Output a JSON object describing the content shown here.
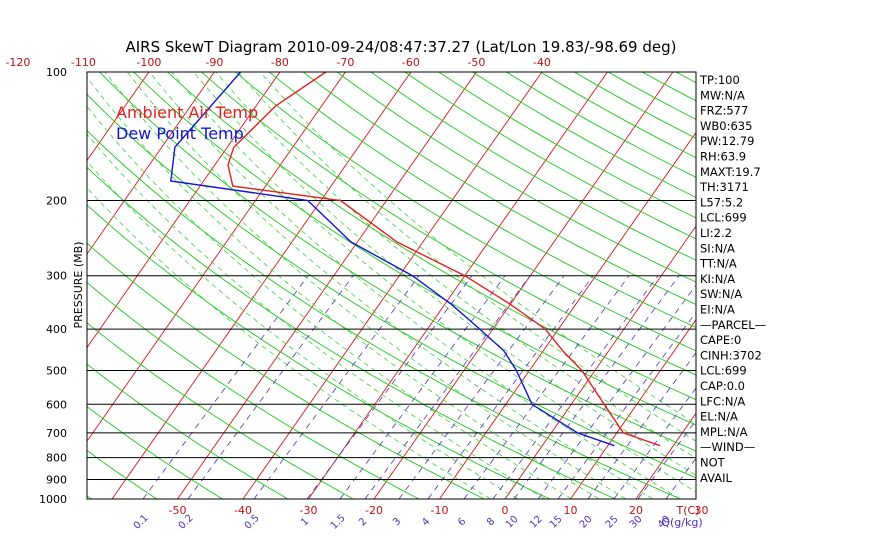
{
  "chart_data": {
    "type": "line",
    "chart_kind": "skew-t log-p thermodynamic diagram",
    "title": "AIRS SkewT Diagram 2010-09-24/08:47:37.27 (Lat/Lon 19.83/-98.69 deg)",
    "ylabel": "PRESSURE (MB)",
    "y_scale": "log",
    "ylim": [
      1000,
      100
    ],
    "pressure_ticks": [
      "100",
      "200",
      "300",
      "400",
      "500",
      "600",
      "700",
      "800",
      "900",
      "1000"
    ],
    "isobar_lines_hpa": [
      200,
      300,
      400,
      500,
      600,
      700,
      800,
      900
    ],
    "top_temp_ticks": [
      "-120",
      "-110",
      "-100",
      "-90",
      "-80",
      "-70",
      "-60",
      "-50",
      "-40"
    ],
    "bottom_temp_ticks": [
      "-50",
      "-40",
      "-30",
      "-20",
      "-10",
      "0",
      "10",
      "20",
      "30"
    ],
    "bottom_axis_unit": "T(C)",
    "mixing_ratio_ticks": [
      "0.1",
      "0.2",
      "0.5",
      "1",
      "1.5",
      "2",
      "3",
      "4",
      "6",
      "8",
      "10",
      "12",
      "15",
      "20",
      "25",
      "30",
      "40"
    ],
    "mixing_ratio_unit": "Q(g/kg)",
    "legend": [
      {
        "label": "Ambient Air Temp",
        "color": "#e02020"
      },
      {
        "label": "Dew Point Temp",
        "color": "#1515d0"
      }
    ],
    "background_colors": {
      "isotherm": "#d81818",
      "dry_adiabat": "#1cc81c",
      "moist_adiabat": "#3cd23c",
      "mixing_ratio": "#5030c0",
      "isobar": "#000000"
    },
    "series": [
      {
        "name": "Ambient Air Temp",
        "color": "#e02020",
        "points": [
          {
            "p": 100,
            "t": -73
          },
          {
            "p": 120,
            "t": -77
          },
          {
            "p": 150,
            "t": -79
          },
          {
            "p": 165,
            "t": -78
          },
          {
            "p": 185,
            "t": -75
          },
          {
            "p": 200,
            "t": -57
          },
          {
            "p": 250,
            "t": -44
          },
          {
            "p": 300,
            "t": -30
          },
          {
            "p": 350,
            "t": -20
          },
          {
            "p": 400,
            "t": -12
          },
          {
            "p": 450,
            "t": -7
          },
          {
            "p": 500,
            "t": -2
          },
          {
            "p": 600,
            "t": 5
          },
          {
            "p": 700,
            "t": 11
          },
          {
            "p": 750,
            "t": 18
          }
        ]
      },
      {
        "name": "Dew Point Temp",
        "color": "#1515d0",
        "points": [
          {
            "p": 100,
            "t": -86
          },
          {
            "p": 150,
            "t": -88
          },
          {
            "p": 180,
            "t": -85
          },
          {
            "p": 200,
            "t": -62
          },
          {
            "p": 250,
            "t": -51
          },
          {
            "p": 300,
            "t": -38
          },
          {
            "p": 350,
            "t": -29
          },
          {
            "p": 400,
            "t": -22
          },
          {
            "p": 450,
            "t": -16
          },
          {
            "p": 500,
            "t": -12
          },
          {
            "p": 600,
            "t": -6
          },
          {
            "p": 700,
            "t": 4
          },
          {
            "p": 750,
            "t": 11
          }
        ]
      }
    ],
    "indices": [
      "TP:100",
      "MW:N/A",
      "FRZ:577",
      "WB0:635",
      "PW:12.79",
      "RH:63.9",
      "MAXT:19.7",
      "TH:3171",
      "L57:5.2",
      "LCL:699",
      "LI:2.2",
      "SI:N/A",
      "TT:N/A",
      "KI:N/A",
      "SW:N/A",
      "EI:N/A",
      "—PARCEL—",
      "CAPE:0",
      "CINH:3702",
      "LCL:699",
      "CAP:0.0",
      "LFC:N/A",
      "EL:N/A",
      "MPL:N/A",
      "—WIND—",
      "NOT",
      "AVAIL"
    ]
  }
}
